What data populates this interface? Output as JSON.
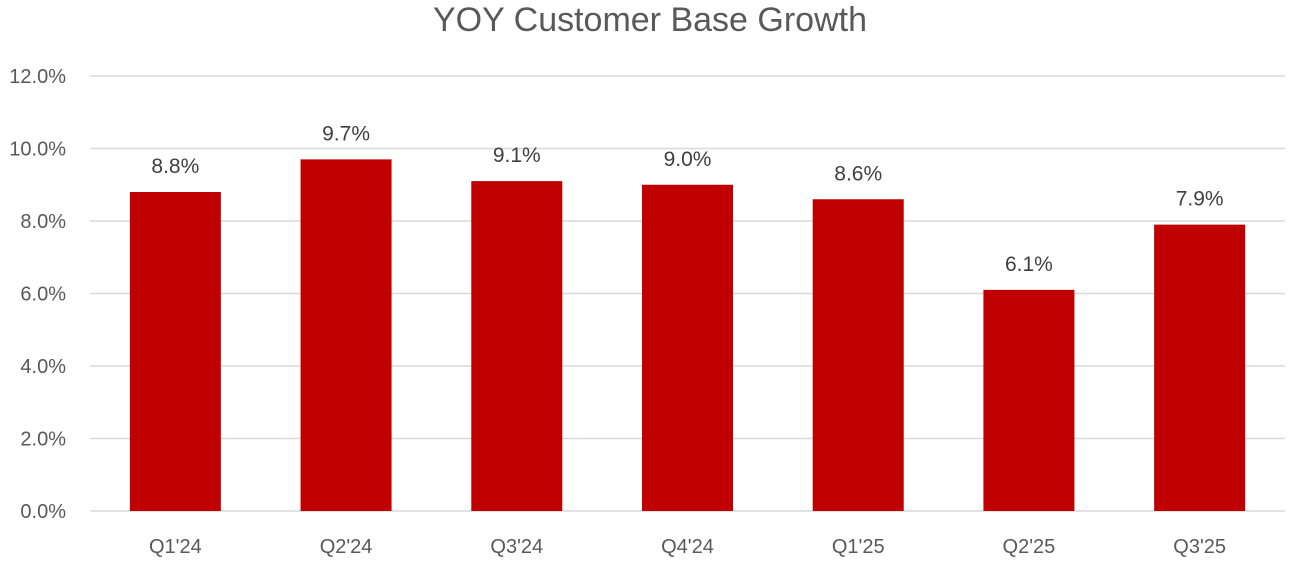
{
  "chart_data": {
    "type": "bar",
    "title": "YOY Customer Base Growth",
    "categories": [
      "Q1'24",
      "Q2'24",
      "Q3'24",
      "Q4'24",
      "Q1'25",
      "Q2'25",
      "Q3'25"
    ],
    "values": [
      8.8,
      9.7,
      9.1,
      9.0,
      8.6,
      6.1,
      7.9
    ],
    "data_labels": [
      "8.8%",
      "9.7%",
      "9.1%",
      "9.0%",
      "8.6%",
      "6.1%",
      "7.9%"
    ],
    "yticks": [
      0,
      2,
      4,
      6,
      8,
      10,
      12
    ],
    "ytick_labels": [
      "0.0%",
      "2.0%",
      "4.0%",
      "6.0%",
      "8.0%",
      "10.0%",
      "12.0%"
    ],
    "ylim": [
      0,
      12
    ],
    "xlabel": "",
    "ylabel": "",
    "grid": true,
    "legend": "none",
    "bar_color": "#C00000"
  }
}
